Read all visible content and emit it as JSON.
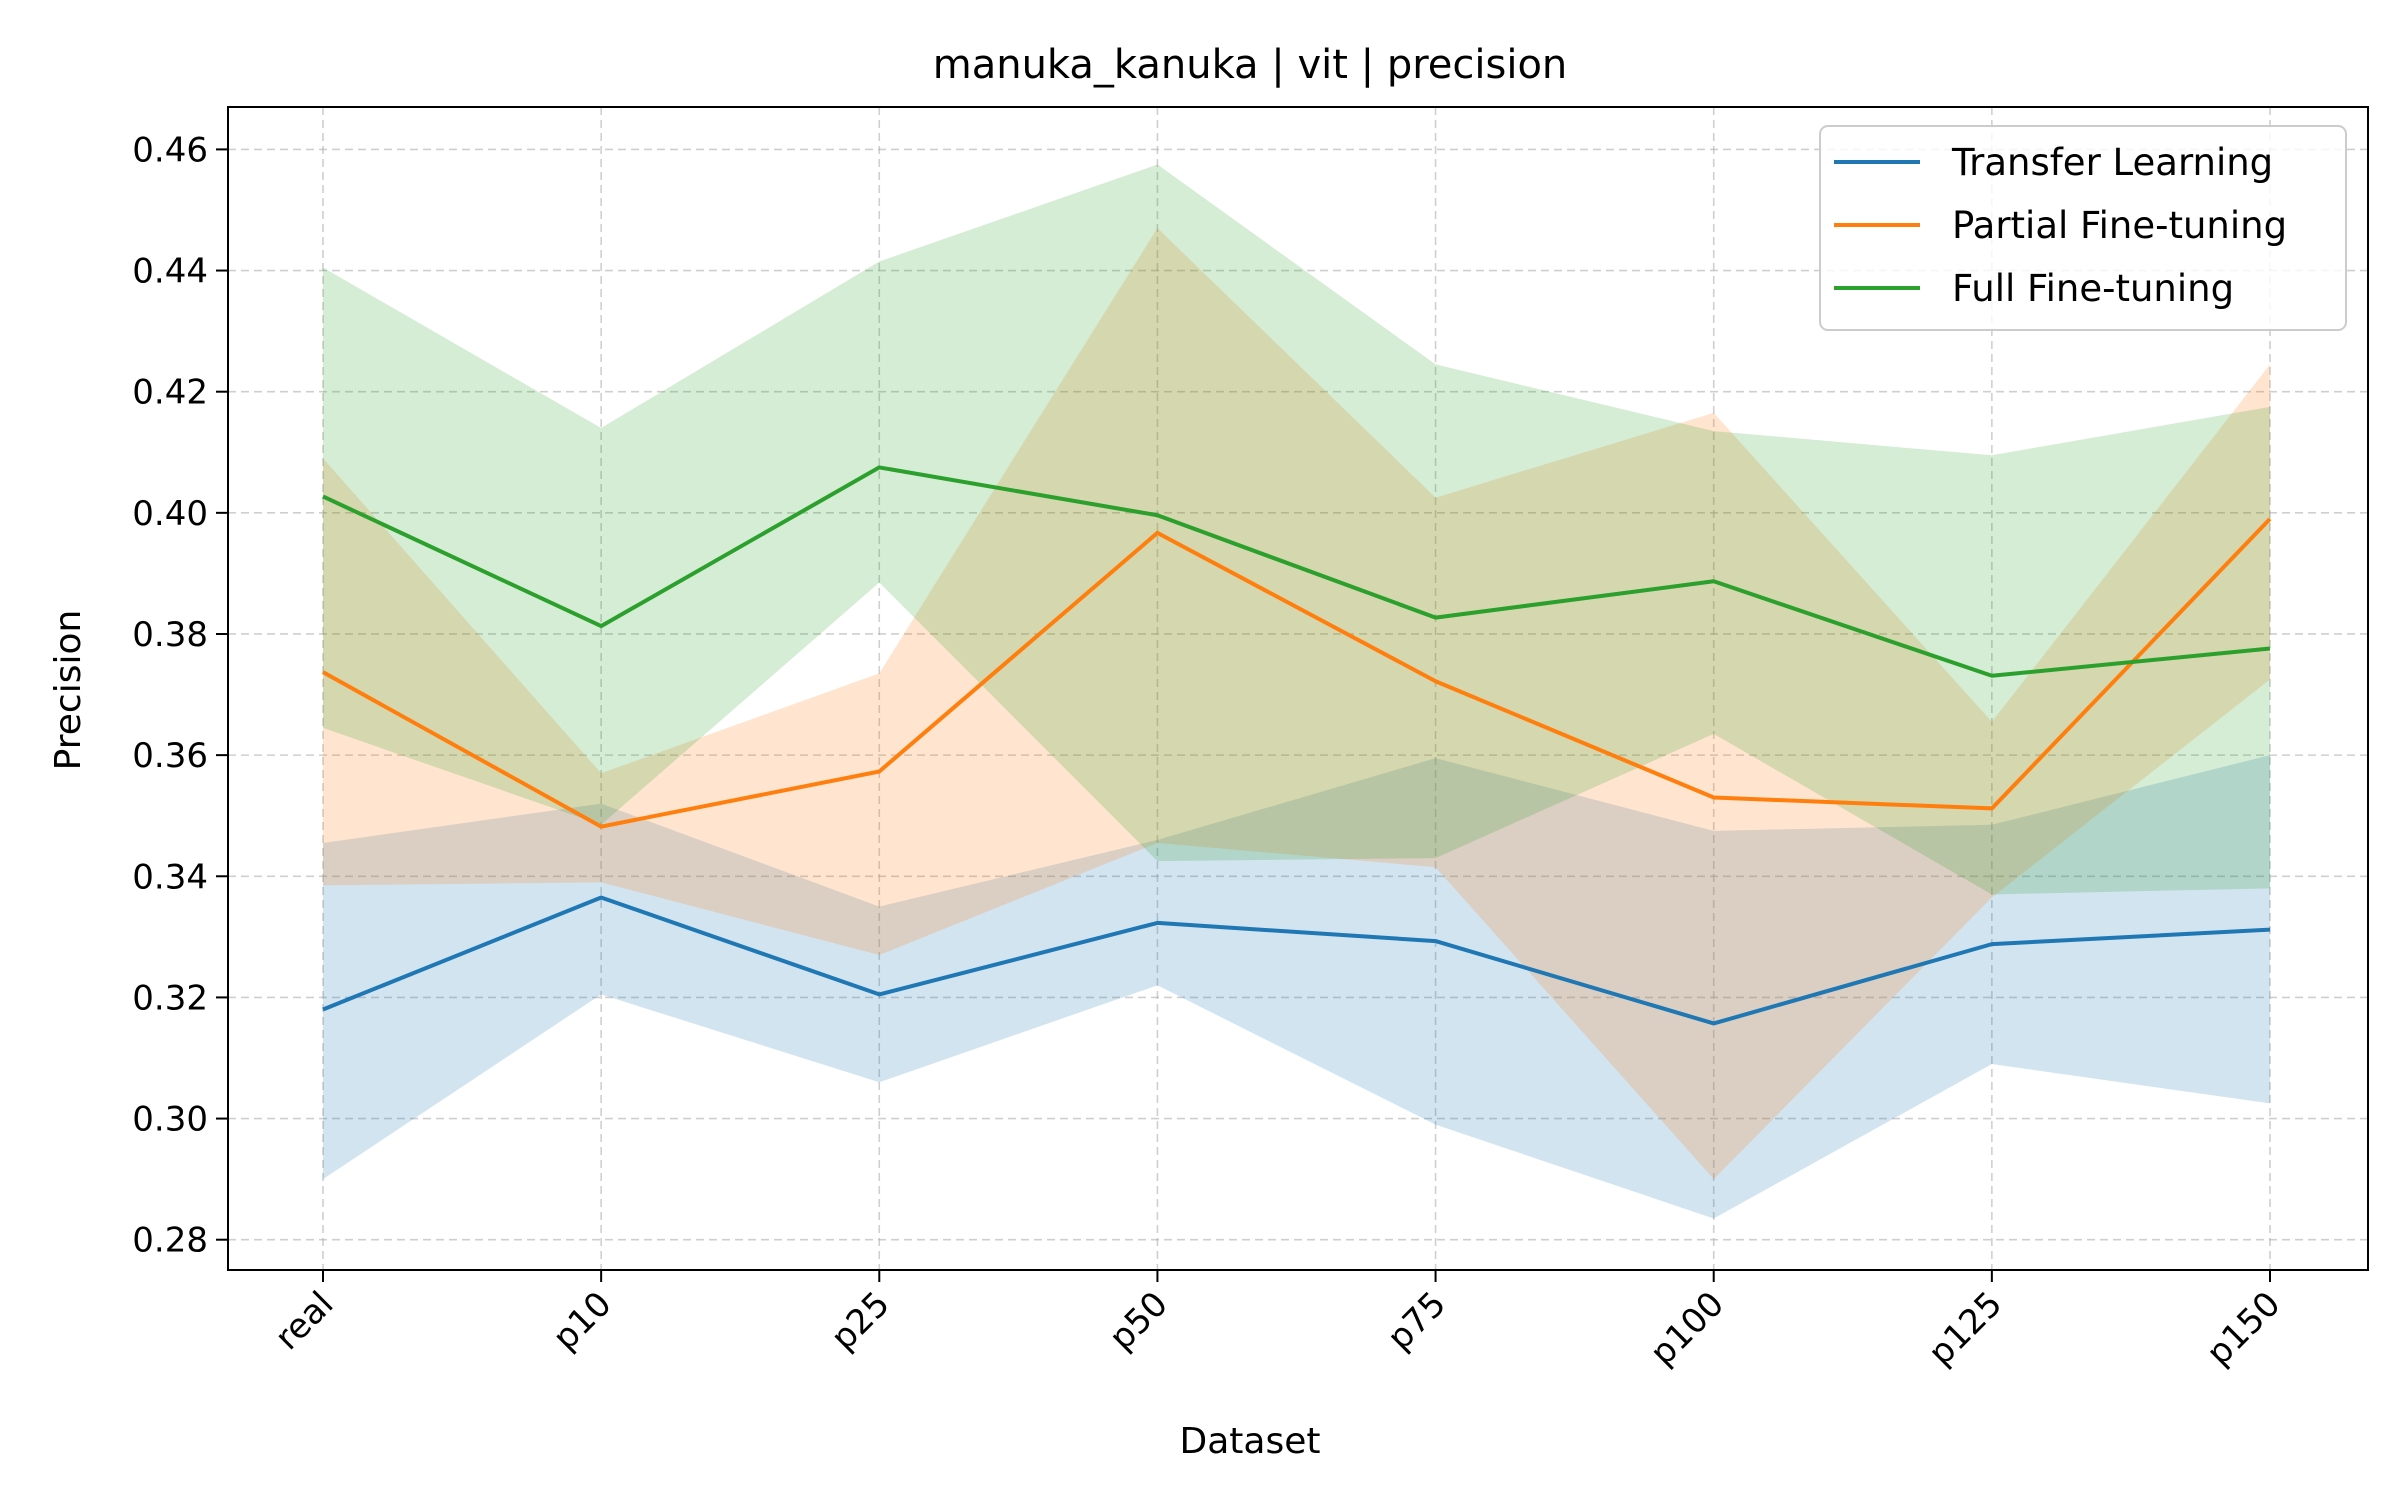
{
  "chart_data": {
    "type": "line",
    "title": "manuka_kanuka | vit | precision",
    "xlabel": "Dataset",
    "ylabel": "Precision",
    "categories": [
      "real",
      "p10",
      "p25",
      "p50",
      "p75",
      "p100",
      "p125",
      "p150"
    ],
    "ylim": [
      0.275,
      0.467
    ],
    "yticks": [
      0.28,
      0.3,
      0.32,
      0.34,
      0.36,
      0.38,
      0.4,
      0.42,
      0.44,
      0.46
    ],
    "grid": true,
    "legend_position": "top-right",
    "series": [
      {
        "name": "Transfer Learning",
        "color": "#1f77b4",
        "values": [
          0.318,
          0.3365,
          0.3205,
          0.3323,
          0.3293,
          0.3157,
          0.3288,
          0.3312
        ],
        "lower": [
          0.29,
          0.3205,
          0.306,
          0.322,
          0.299,
          0.2835,
          0.309,
          0.3025
        ],
        "upper": [
          0.3455,
          0.352,
          0.335,
          0.346,
          0.3595,
          0.3475,
          0.3485,
          0.36
        ]
      },
      {
        "name": "Partial Fine-tuning",
        "color": "#ff7f0e",
        "values": [
          0.3737,
          0.3482,
          0.3573,
          0.3967,
          0.3722,
          0.353,
          0.3512,
          0.399
        ],
        "lower": [
          0.3385,
          0.339,
          0.327,
          0.3455,
          0.3415,
          0.29,
          0.3365,
          0.3725
        ],
        "upper": [
          0.409,
          0.357,
          0.3735,
          0.447,
          0.4025,
          0.4165,
          0.3655,
          0.4245
        ]
      },
      {
        "name": "Full Fine-tuning",
        "color": "#2ca02c",
        "values": [
          0.4027,
          0.3813,
          0.4075,
          0.3996,
          0.3827,
          0.3887,
          0.3731,
          0.3776
        ],
        "lower": [
          0.3645,
          0.3485,
          0.3885,
          0.3425,
          0.343,
          0.3635,
          0.337,
          0.338
        ],
        "upper": [
          0.4405,
          0.414,
          0.4415,
          0.4575,
          0.4245,
          0.4135,
          0.4095,
          0.4175
        ]
      }
    ]
  }
}
